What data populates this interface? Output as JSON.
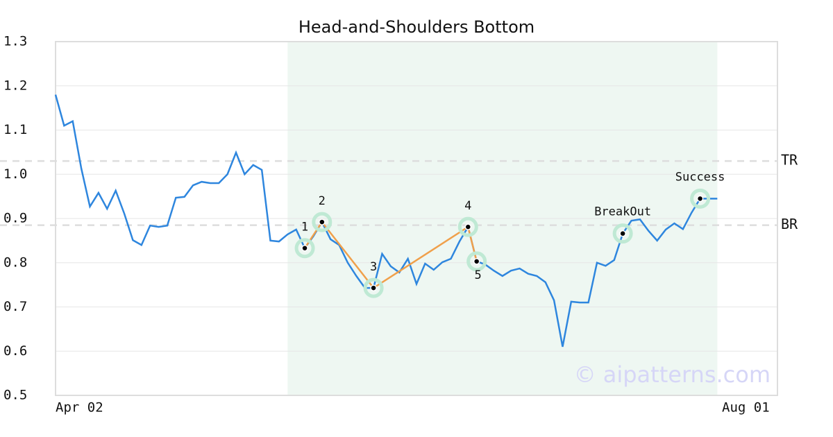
{
  "chart_data": {
    "type": "line",
    "title": "Head-and-Shoulders Bottom",
    "categories": [
      "Apr 02",
      null,
      null,
      null,
      null,
      null,
      null,
      null,
      null,
      null,
      null,
      null,
      null,
      null,
      null,
      null,
      null,
      null,
      null,
      null,
      null,
      null,
      null,
      null,
      null,
      null,
      null,
      null,
      null,
      null,
      null,
      null,
      null,
      null,
      null,
      null,
      null,
      null,
      null,
      null,
      null,
      null,
      null,
      null,
      null,
      null,
      null,
      null,
      null,
      null,
      null,
      null,
      null,
      null,
      null,
      null,
      null,
      null,
      null,
      null,
      null,
      null,
      null,
      null,
      null,
      null,
      null,
      null,
      null,
      null,
      null,
      null,
      null,
      null,
      null,
      null,
      null,
      null,
      null,
      null,
      null,
      null,
      null,
      null,
      "Aug 01"
    ],
    "values": [
      1.18,
      1.11,
      1.12,
      1.013,
      0.927,
      0.958,
      0.922,
      0.963,
      0.911,
      0.851,
      0.84,
      0.884,
      0.881,
      0.884,
      0.947,
      0.949,
      0.975,
      0.983,
      0.98,
      0.98,
      1.0,
      1.049,
      1.0,
      1.021,
      1.01,
      0.85,
      0.848,
      0.864,
      0.875,
      0.833,
      0.86,
      0.892,
      0.853,
      0.84,
      0.8,
      0.77,
      0.743,
      0.743,
      0.82,
      0.792,
      0.778,
      0.809,
      0.752,
      0.798,
      0.784,
      0.801,
      0.809,
      0.848,
      0.881,
      0.803,
      0.796,
      0.782,
      0.77,
      0.782,
      0.787,
      0.775,
      0.77,
      0.756,
      0.715,
      0.61,
      0.712,
      0.71,
      0.71,
      0.8,
      0.793,
      0.806,
      0.866,
      0.895,
      0.898,
      0.872,
      0.85,
      0.875,
      0.889,
      0.876,
      0.913,
      0.945,
      0.945,
      0.945,
      null,
      null,
      null,
      null,
      null,
      null,
      null
    ],
    "color": "#2e86de",
    "ylim": [
      0.5,
      1.3
    ],
    "yticks": [
      0.5,
      0.6,
      0.7,
      0.8,
      0.9,
      {
        "value": 1,
        "label": "1.0"
      },
      1.1,
      1.2,
      1.3
    ],
    "grid": true,
    "shade": {
      "from": 27,
      "to": 77,
      "color": "#eef7f2"
    },
    "levels": [
      {
        "label": "TR",
        "value": 1.03
      },
      {
        "label": "BR",
        "value": 0.885
      }
    ],
    "pattern_color": "#f0a04b",
    "markers": [
      {
        "label": "1",
        "index": 29
      },
      {
        "label": "2",
        "index": 31
      },
      {
        "label": "3",
        "index": 37
      },
      {
        "label": "4",
        "index": 48
      },
      {
        "label": "5",
        "index": 49
      },
      {
        "label": "BreakOut",
        "index": 66
      },
      {
        "label": "Success",
        "index": 75
      }
    ],
    "watermark": "© aipatterns.com"
  }
}
